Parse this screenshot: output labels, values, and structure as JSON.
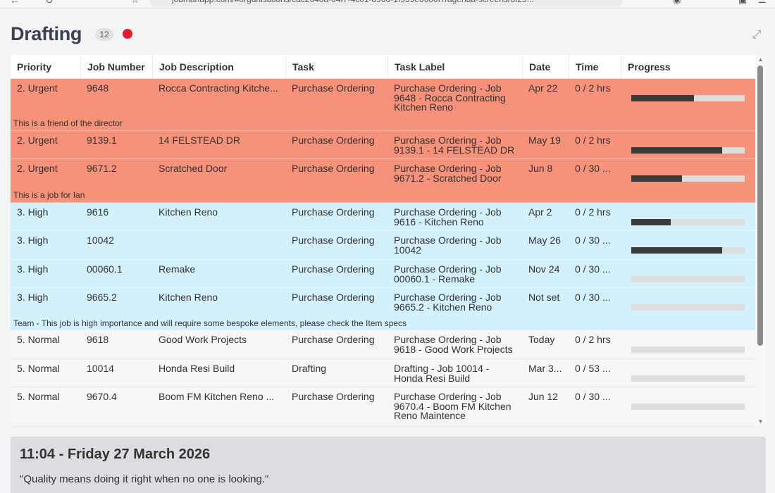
{
  "browser": {
    "url": "jobmanapp.com/#organisations/cac2040a-04f7-4c01-8900-1f959e6600f7/agenda-screens/6f29..."
  },
  "header": {
    "title": "Drafting",
    "count": "12",
    "status_color": "#e11d2a"
  },
  "colors": {
    "urgent": "#f6917a",
    "high": "#d2f0fd",
    "normal": "#f5f6f7",
    "progress_fill": "#3a3a3a",
    "progress_track": "#dddddd"
  },
  "columns": [
    "Priority",
    "Job Number",
    "Job Description",
    "Task",
    "Task Label",
    "Date",
    "Time",
    "Progress"
  ],
  "rows": [
    {
      "priority": "2. Urgent",
      "job_number": "9648",
      "description": "Rocca Contracting Kitche...",
      "task": "Purchase Ordering",
      "task_label": "Purchase Ordering - Job 9648 - Rocca Contracting Kitchen Reno",
      "date": "Apr 22",
      "time": "0 / 2 hrs",
      "progress": 0.55,
      "note": "This is a friend of the director",
      "level": "urgent"
    },
    {
      "priority": "2. Urgent",
      "job_number": "9139.1",
      "description": "14 FELSTEAD DR",
      "task": "Purchase Ordering",
      "task_label": "Purchase Ordering - Job 9139.1 - 14 FELSTEAD DR",
      "date": "May 19",
      "time": "0 / 2 hrs",
      "progress": 0.8,
      "note": "",
      "level": "urgent"
    },
    {
      "priority": "2. Urgent",
      "job_number": "9671.2",
      "description": "Scratched Door",
      "task": "Purchase Ordering",
      "task_label": "Purchase Ordering - Job 9671.2 - Scratched Door",
      "date": "Jun 8",
      "time": "0 / 30 ...",
      "progress": 0.45,
      "note": "This is a job for Ian",
      "level": "urgent"
    },
    {
      "priority": "3. High",
      "job_number": "9616",
      "description": "Kitchen Reno",
      "task": "Purchase Ordering",
      "task_label": "Purchase Ordering - Job 9616 - Kitchen Reno",
      "date": "Apr 2",
      "time": "0 / 2 hrs",
      "progress": 0.35,
      "note": "",
      "level": "high"
    },
    {
      "priority": "3. High",
      "job_number": "10042",
      "description": "",
      "task": "Purchase Ordering",
      "task_label": "Purchase Ordering - Job 10042",
      "date": "May 26",
      "time": "0 / 30 ...",
      "progress": 0.8,
      "note": "",
      "level": "high"
    },
    {
      "priority": "3. High",
      "job_number": "00060.1",
      "description": "Remake",
      "task": "Purchase Ordering",
      "task_label": "Purchase Ordering - Job 00060.1 - Remake",
      "date": "Nov 24",
      "time": "0 / 30 ...",
      "progress": 0,
      "note": "",
      "level": "high"
    },
    {
      "priority": "3. High",
      "job_number": "9665.2",
      "description": "Kitchen Reno",
      "task": "Purchase Ordering",
      "task_label": "Purchase Ordering - Job 9665.2 - Kitchen Reno",
      "date": "Not set",
      "time": "0 / 30 ...",
      "progress": 0,
      "note": "Team - This job is high importance and will require some bespoke elements, please check the Item specs",
      "level": "high"
    },
    {
      "priority": "5. Normal",
      "job_number": "9618",
      "description": "Good Work Projects",
      "task": "Purchase Ordering",
      "task_label": "Purchase Ordering - Job 9618 - Good Work Projects",
      "date": "Today",
      "time": "0 / 2 hrs",
      "progress": 0,
      "note": "",
      "level": "normal"
    },
    {
      "priority": "5. Normal",
      "job_number": "10014",
      "description": "Honda Resi Build",
      "task": "Drafting",
      "task_label": "Drafting - Job 10014 - Honda Resi Build",
      "date": "Mar 3...",
      "time": "0 / 53 ...",
      "progress": 0,
      "note": "",
      "level": "normal"
    },
    {
      "priority": "5. Normal",
      "job_number": "9670.4",
      "description": "Boom FM Kitchen Reno ...",
      "task": "Purchase Ordering",
      "task_label": "Purchase Ordering - Job 9670.4 - Boom FM Kitchen Reno Maintence",
      "date": "Jun 12",
      "time": "0 / 30 ...",
      "progress": 0,
      "note": "",
      "level": "normal"
    }
  ],
  "footer": {
    "clock": "11:04 - Friday 27 March 2026",
    "quote": "\"Quality means doing it right when no one is looking.\""
  }
}
